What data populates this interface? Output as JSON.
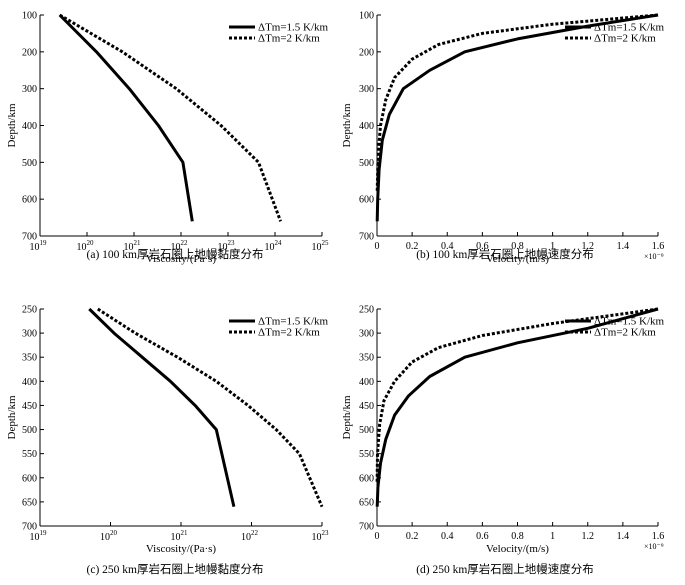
{
  "chart_data": [
    {
      "type": "line",
      "caption": "(a) 100 km厚岩石圈上地幔黏度分布",
      "xlabel": "Viscosity/(Pa·s)",
      "ylabel": "Depth/km",
      "xscale": "log",
      "xlim": [
        1e+19,
        1e+25
      ],
      "ylim": [
        100,
        700
      ],
      "y_inverted": true,
      "x_ticks": [
        {
          "base": "10",
          "exp": "19",
          "value": 19
        },
        {
          "base": "10",
          "exp": "20",
          "value": 20
        },
        {
          "base": "10",
          "exp": "21",
          "value": 21
        },
        {
          "base": "10",
          "exp": "22",
          "value": 22
        },
        {
          "base": "10",
          "exp": "23",
          "value": 23
        },
        {
          "base": "10",
          "exp": "24",
          "value": 24
        },
        {
          "base": "10",
          "exp": "25",
          "value": 25
        }
      ],
      "y_ticks": [
        "100",
        "200",
        "300",
        "400",
        "500",
        "600",
        "700"
      ],
      "legend_position": "top-right",
      "series": [
        {
          "name": "ΔTm=1.5 K/km",
          "style": "solid",
          "x_log10": [
            19.42,
            20.2,
            20.9,
            21.52,
            22.04,
            22.24
          ],
          "y": [
            100,
            200,
            300,
            400,
            500,
            660
          ]
        },
        {
          "name": "ΔTm=2 K/km",
          "style": "dotted",
          "x_log10": [
            19.42,
            20.75,
            21.9,
            22.85,
            23.65,
            24.12
          ],
          "y": [
            100,
            200,
            300,
            400,
            500,
            660
          ]
        }
      ]
    },
    {
      "type": "line",
      "caption": "(b) 100 km厚岩石圈上地幔速度分布",
      "xlabel": "Velocity/(m/s)",
      "ylabel": "Depth/km",
      "xlim": [
        0,
        1.6
      ],
      "ylim": [
        100,
        700
      ],
      "y_inverted": true,
      "x_multiplier": "×10⁻⁹",
      "x_ticks": [
        "0",
        "0.2",
        "0.4",
        "0.6",
        "0.8",
        "1",
        "1.2",
        "1.4",
        "1.6"
      ],
      "y_ticks": [
        "100",
        "200",
        "300",
        "400",
        "500",
        "600",
        "700"
      ],
      "legend_position": "top-right",
      "series": [
        {
          "name": "ΔTm=1.5 K/km",
          "style": "solid",
          "x": [
            1.6,
            1.2,
            0.8,
            0.5,
            0.3,
            0.15,
            0.07,
            0.03,
            0.012,
            0.004,
            0.001
          ],
          "y": [
            100,
            130,
            165,
            200,
            250,
            300,
            370,
            440,
            520,
            600,
            660
          ]
        },
        {
          "name": "ΔTm=2 K/km",
          "style": "dotted",
          "x": [
            1.6,
            1.0,
            0.6,
            0.35,
            0.2,
            0.1,
            0.05,
            0.02,
            0.006,
            0.001
          ],
          "y": [
            100,
            125,
            150,
            180,
            220,
            270,
            330,
            400,
            480,
            580
          ]
        }
      ]
    },
    {
      "type": "line",
      "caption": "(c) 250 km厚岩石圈上地幔黏度分布",
      "xlabel": "Viscosity/(Pa·s)",
      "ylabel": "Depth/km",
      "xscale": "log",
      "xlim": [
        1e+19,
        1e+23
      ],
      "ylim": [
        250,
        700
      ],
      "y_inverted": true,
      "x_ticks": [
        {
          "base": "10",
          "exp": "19",
          "value": 19
        },
        {
          "base": "10",
          "exp": "20",
          "value": 20
        },
        {
          "base": "10",
          "exp": "21",
          "value": 21
        },
        {
          "base": "10",
          "exp": "22",
          "value": 22
        },
        {
          "base": "10",
          "exp": "23",
          "value": 23
        }
      ],
      "y_ticks": [
        "250",
        "300",
        "350",
        "400",
        "450",
        "500",
        "550",
        "600",
        "650",
        "700"
      ],
      "legend_position": "top-right",
      "series": [
        {
          "name": "ΔTm=1.5 K/km",
          "style": "solid",
          "x_log10": [
            19.7,
            20.05,
            20.45,
            20.85,
            21.2,
            21.5,
            21.75
          ],
          "y": [
            250,
            300,
            350,
            400,
            450,
            500,
            660
          ]
        },
        {
          "name": "ΔTm=2 K/km",
          "style": "dotted",
          "x_log10": [
            19.82,
            20.35,
            20.95,
            21.5,
            21.95,
            22.35,
            22.68,
            23.0
          ],
          "y": [
            250,
            300,
            350,
            400,
            450,
            500,
            550,
            660
          ]
        }
      ]
    },
    {
      "type": "line",
      "caption": "(d) 250 km厚岩石圈上地幔速度分布",
      "xlabel": "Velocity/(m/s)",
      "ylabel": "Depth/km",
      "xlim": [
        0,
        1.6
      ],
      "ylim": [
        250,
        700
      ],
      "y_inverted": true,
      "x_multiplier": "×10⁻⁹",
      "x_ticks": [
        "0",
        "0.2",
        "0.4",
        "0.6",
        "0.8",
        "1",
        "1.2",
        "1.4",
        "1.6"
      ],
      "y_ticks": [
        "250",
        "300",
        "350",
        "400",
        "450",
        "500",
        "550",
        "600",
        "650",
        "700"
      ],
      "legend_position": "top-right",
      "series": [
        {
          "name": "ΔTm=1.5 K/km",
          "style": "solid",
          "x": [
            1.6,
            1.2,
            0.8,
            0.5,
            0.3,
            0.18,
            0.1,
            0.05,
            0.02,
            0.005,
            0.001
          ],
          "y": [
            250,
            290,
            320,
            350,
            390,
            430,
            470,
            520,
            570,
            620,
            660
          ]
        },
        {
          "name": "ΔTm=2 K/km",
          "style": "dotted",
          "x": [
            1.6,
            1.0,
            0.6,
            0.35,
            0.2,
            0.1,
            0.04,
            0.015,
            0.003,
            0.0005
          ],
          "y": [
            250,
            280,
            305,
            330,
            360,
            400,
            440,
            490,
            550,
            610
          ]
        }
      ]
    }
  ]
}
